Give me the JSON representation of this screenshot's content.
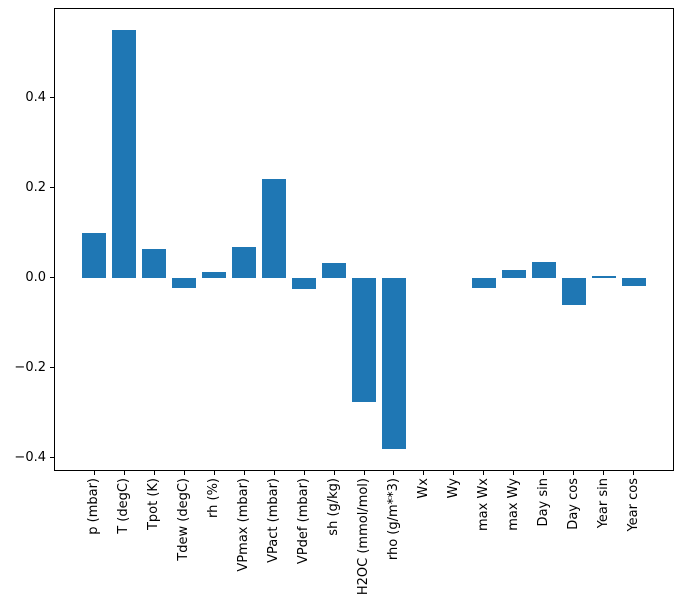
{
  "chart_data": {
    "type": "bar",
    "title": "",
    "xlabel": "",
    "ylabel": "",
    "grid": false,
    "legend": null,
    "bar_color": "#1f77b4",
    "axis_color": "#000000",
    "categories": [
      "p (mbar)",
      "T (degC)",
      "Tpot (K)",
      "Tdew (degC)",
      "rh (%)",
      "VPmax (mbar)",
      "VPact (mbar)",
      "VPdef (mbar)",
      "sh (g/kg)",
      "H2OC (mmol/mol)",
      "rho (g/m**3)",
      "Wx",
      "Wy",
      "max Wx",
      "max Wy",
      "Day sin",
      "Day cos",
      "Year sin",
      "Year cos"
    ],
    "values": [
      0.1,
      0.55,
      0.064,
      -0.023,
      0.013,
      0.069,
      0.22,
      -0.024,
      0.032,
      -0.276,
      -0.381,
      0.0,
      0.0,
      -0.022,
      0.017,
      0.036,
      -0.061,
      0.004,
      -0.018
    ],
    "ylim": [
      -0.429,
      0.599
    ],
    "xlim": [
      -1.34,
      19.34
    ],
    "yticks": [
      0.4,
      0.2,
      0.0,
      -0.2,
      -0.4
    ],
    "ytick_labels": [
      "0.4",
      "0.2",
      "0.0",
      "−0.2",
      "−0.4"
    ],
    "bar_width_units": 0.8
  }
}
